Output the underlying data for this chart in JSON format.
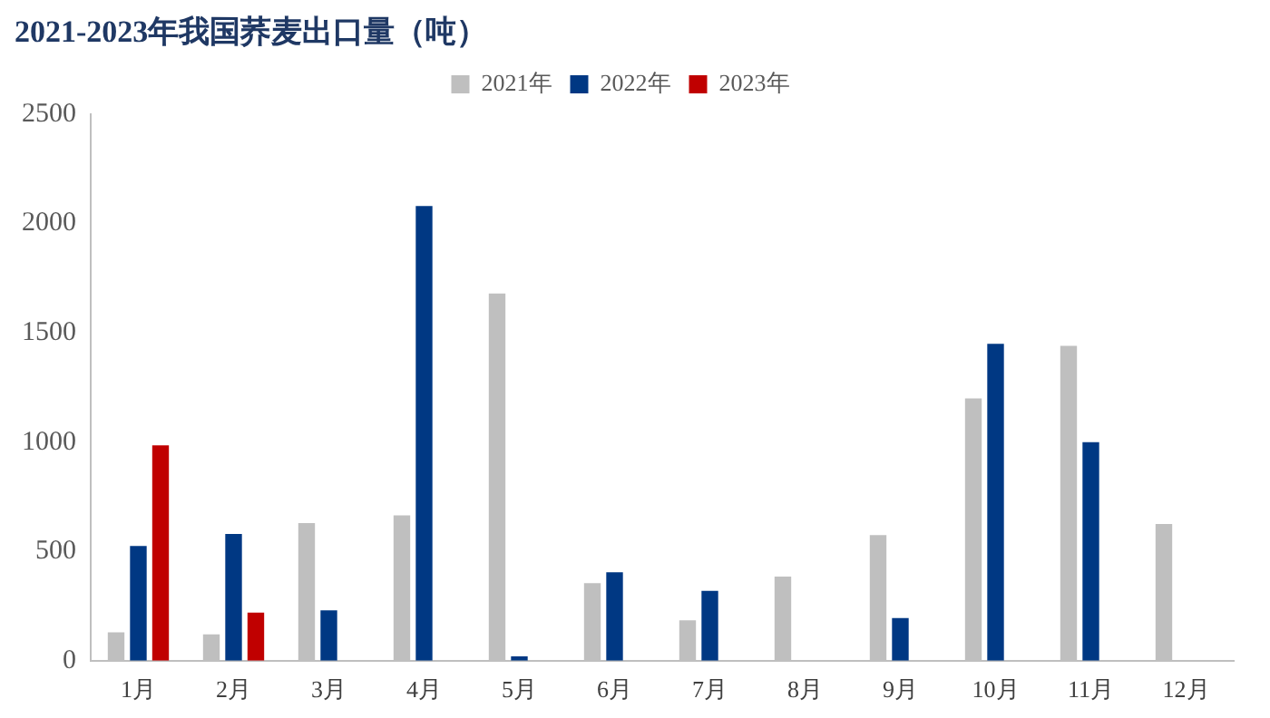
{
  "chart_data": {
    "type": "bar",
    "title": "2021-2023年我国荞麦出口量（吨）",
    "categories": [
      "1月",
      "2月",
      "3月",
      "4月",
      "5月",
      "6月",
      "7月",
      "8月",
      "9月",
      "10月",
      "11月",
      "12月"
    ],
    "series": [
      {
        "name": "2021年",
        "color": "#bfbfbf",
        "values": [
          130,
          120,
          630,
          665,
          1680,
          355,
          185,
          385,
          575,
          1200,
          1440,
          625
        ]
      },
      {
        "name": "2022年",
        "color": "#003883",
        "values": [
          525,
          580,
          230,
          2080,
          20,
          405,
          320,
          null,
          195,
          1450,
          1000,
          null
        ]
      },
      {
        "name": "2023年",
        "color": "#c00000",
        "values": [
          985,
          220,
          null,
          null,
          null,
          null,
          null,
          null,
          null,
          null,
          null,
          null
        ]
      }
    ],
    "ylim": [
      0,
      2500
    ],
    "yticks": [
      0,
      500,
      1000,
      1500,
      2000,
      2500
    ],
    "grid": false,
    "legend": "top"
  }
}
